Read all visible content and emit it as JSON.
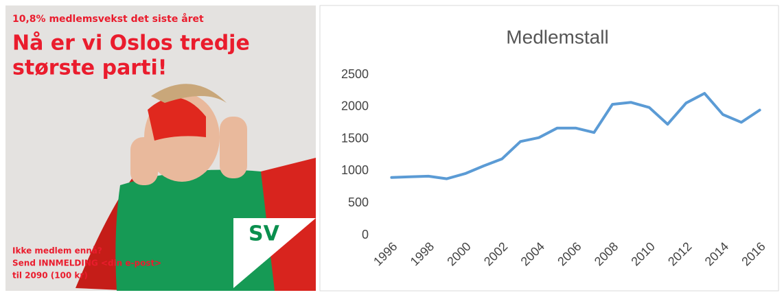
{
  "poster": {
    "kicker": "10,8% medlemsvekst det siste året",
    "headline": [
      "Nå er vi Oslos tredje",
      "største parti!"
    ],
    "footer": [
      "Ikke medlem ennå?",
      "Send INNMELDING <din e-post>",
      "til 2090 (100 kr)"
    ],
    "logo": "SV"
  },
  "chart_data": {
    "type": "line",
    "title": "Medlemstall",
    "categories": [
      "1996",
      null,
      "1998",
      null,
      "2000",
      null,
      "2002",
      null,
      "2004",
      null,
      "2006",
      null,
      "2008",
      null,
      "2010",
      null,
      "2012",
      null,
      "2014",
      null,
      "2016"
    ],
    "values": [
      900,
      910,
      920,
      880,
      960,
      1080,
      1190,
      1460,
      1520,
      1670,
      1670,
      1600,
      2040,
      2070,
      1990,
      1730,
      2060,
      2210,
      1880,
      1760,
      1950
    ],
    "color": "#5b9bd5",
    "ylim": [
      0,
      2500
    ],
    "yticks": [
      0,
      500,
      1000,
      1500,
      2000,
      2500
    ],
    "grid": false
  }
}
